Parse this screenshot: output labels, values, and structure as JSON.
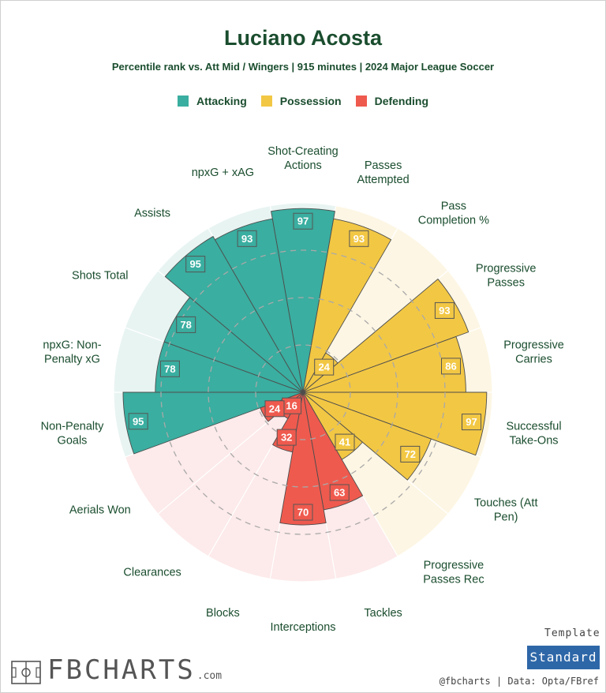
{
  "header": {
    "title": "Luciano Acosta",
    "subtitle": "Percentile rank vs. Att Mid / Wingers | 915 minutes | 2024 Major League Soccer"
  },
  "legend": [
    {
      "label": "Attacking",
      "color": "#3aaea0"
    },
    {
      "label": "Possession",
      "color": "#f2c744"
    },
    {
      "label": "Defending",
      "color": "#ef5a4e"
    }
  ],
  "chart_data": {
    "type": "bar",
    "subtype": "polar-radial",
    "scale": [
      0,
      100
    ],
    "grid": "dashed rings at 25, 50, 75",
    "categories": [
      "Shot-Creating Actions",
      "Passes Attempted",
      "Pass Completion %",
      "Progressive Passes",
      "Progressive Carries",
      "Successful Take-Ons",
      "Touches (Att Pen)",
      "Progressive Passes Rec",
      "Tackles",
      "Interceptions",
      "Blocks",
      "Clearances",
      "Aerials Won",
      "Non-Penalty Goals",
      "npxG: Non-Penalty xG",
      "Shots Total",
      "Assists",
      "npxG + xAG"
    ],
    "labels": [
      "Shot-Creating\nActions",
      "Passes\nAttempted",
      "Pass\nCompletion %",
      "Progressive\nPasses",
      "Progressive\nCarries",
      "Successful\nTake-Ons",
      "Touches (Att\nPen)",
      "Progressive\nPasses Rec",
      "Tackles",
      "Interceptions",
      "Blocks",
      "Clearances",
      "Aerials Won",
      "Non-Penalty\nGoals",
      "npxG: Non-\nPenalty xG",
      "Shots Total",
      "Assists",
      "npxG + xAG"
    ],
    "groups": [
      "Attacking",
      "Possession",
      "Possession",
      "Possession",
      "Possession",
      "Possession",
      "Possession",
      "Possession",
      "Defending",
      "Defending",
      "Defending",
      "Defending",
      "Defending",
      "Attacking",
      "Attacking",
      "Attacking",
      "Attacking",
      "Attacking"
    ],
    "values": [
      97,
      93,
      24,
      93,
      86,
      97,
      72,
      41,
      63,
      70,
      32,
      16,
      24,
      95,
      78,
      78,
      95,
      93
    ]
  },
  "footer": {
    "brand": "FBCHARTS",
    "brand_tld": ".com",
    "template_label": "Template",
    "template_value": "Standard",
    "credits": "@fbcharts | Data: Opta/FBref"
  },
  "colors": {
    "title": "#1a4d2e",
    "Attacking": "#3aaea0",
    "Possession": "#f2c744",
    "Defending": "#ef5a4e",
    "Attacking_bg": "#e8f4f2",
    "Possession_bg": "#fdf6e4",
    "Defending_bg": "#fdeaea",
    "template_button": "#2e67a8"
  }
}
